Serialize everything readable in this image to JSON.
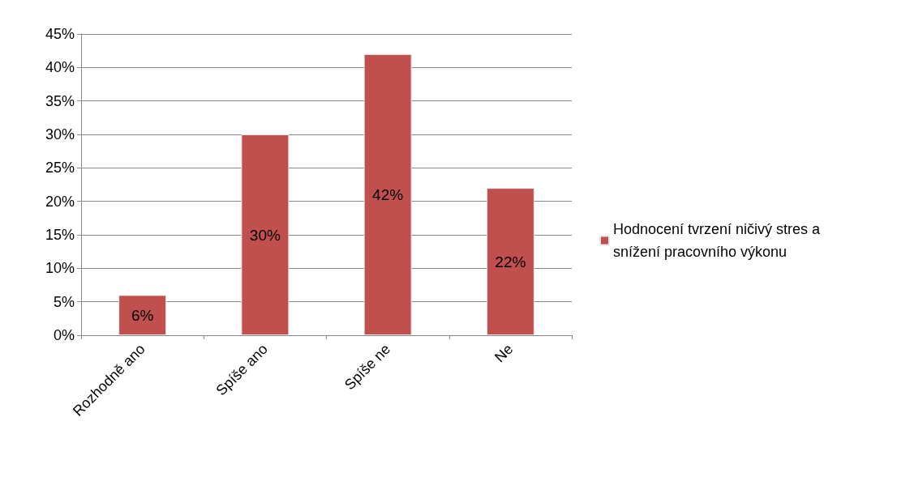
{
  "chart_data": {
    "type": "bar",
    "categories": [
      "Rozhodně ano",
      "Spíše ano",
      "Spíše ne",
      "Ne"
    ],
    "series": [
      {
        "name": "Hodnocení tvrzení ničivý stres a snížení pracovního výkonu",
        "color": "#c0504d",
        "values": [
          6,
          30,
          42,
          22
        ],
        "value_labels": [
          "6%",
          "30%",
          "42%",
          "22%"
        ]
      }
    ],
    "ylim": [
      0,
      45
    ],
    "yticks": [
      {
        "value": 0,
        "label": "0%"
      },
      {
        "value": 5,
        "label": "5%"
      },
      {
        "value": 10,
        "label": "10%"
      },
      {
        "value": 15,
        "label": "15%"
      },
      {
        "value": 20,
        "label": "20%"
      },
      {
        "value": 25,
        "label": "25%"
      },
      {
        "value": 30,
        "label": "30%"
      },
      {
        "value": 35,
        "label": "35%"
      },
      {
        "value": 40,
        "label": "40%"
      },
      {
        "value": 45,
        "label": "45%"
      }
    ],
    "grid": "y",
    "legend": "right"
  }
}
